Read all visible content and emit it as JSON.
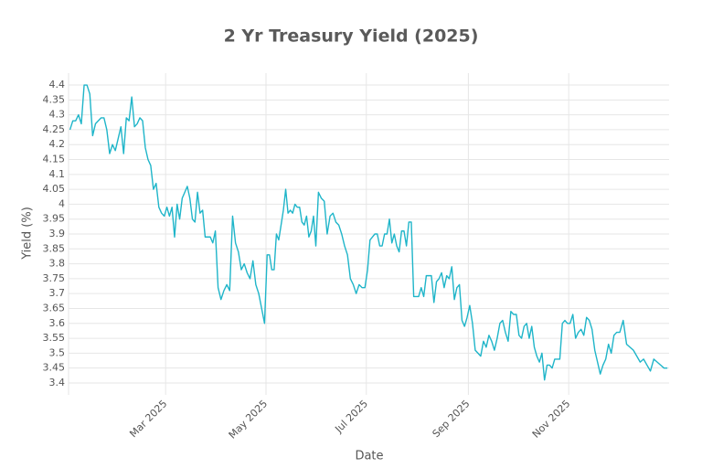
{
  "chart_data": {
    "type": "line",
    "title": "2 Yr Treasury Yield (2025)",
    "x_label": "Date",
    "y_label": "Yield (%)",
    "color": "#1fb5c9",
    "grid": true,
    "ylim": [
      3.36,
      4.44
    ],
    "yticks": [
      3.4,
      3.45,
      3.5,
      3.55,
      3.6,
      3.65,
      3.7,
      3.75,
      3.8,
      3.85,
      3.9,
      3.95,
      4,
      4.05,
      4.1,
      4.15,
      4.2,
      4.25,
      4.3,
      4.35,
      4.4
    ],
    "xticks": [
      {
        "value": "2025-03",
        "label": "Mar 2025"
      },
      {
        "value": "2025-05",
        "label": "May 2025"
      },
      {
        "value": "2025-07",
        "label": "Jul 2025"
      },
      {
        "value": "2025-09",
        "label": "Sep 2025"
      },
      {
        "value": "2025-11",
        "label": "Nov 2025"
      }
    ],
    "x": [
      "2025-01",
      "2025-01",
      "2025-01",
      "2025-01",
      "2025-01",
      "2025-01",
      "2025-01",
      "2025-01",
      "2025-01",
      "2025-01",
      "2025-01",
      "2025-01",
      "2025-01",
      "2025-01",
      "2025-01",
      "2025-01",
      "2025-01",
      "2025-01",
      "2025-02",
      "2025-02",
      "2025-02",
      "2025-02",
      "2025-02",
      "2025-02",
      "2025-02",
      "2025-02",
      "2025-02",
      "2025-02",
      "2025-02",
      "2025-02",
      "2025-02",
      "2025-02",
      "2025-02",
      "2025-02",
      "2025-02",
      "2025-03",
      "2025-03",
      "2025-03",
      "2025-03",
      "2025-03",
      "2025-03",
      "2025-03",
      "2025-03",
      "2025-03",
      "2025-03",
      "2025-03",
      "2025-03",
      "2025-03",
      "2025-03",
      "2025-03",
      "2025-03",
      "2025-03",
      "2025-03",
      "2025-03",
      "2025-03",
      "2025-04",
      "2025-04",
      "2025-04",
      "2025-04",
      "2025-04",
      "2025-04",
      "2025-04",
      "2025-04",
      "2025-04",
      "2025-04",
      "2025-04",
      "2025-04",
      "2025-04",
      "2025-04",
      "2025-04",
      "2025-04",
      "2025-04",
      "2025-05",
      "2025-05",
      "2025-05",
      "2025-05",
      "2025-05",
      "2025-05",
      "2025-05",
      "2025-05",
      "2025-05",
      "2025-05",
      "2025-05",
      "2025-05",
      "2025-05",
      "2025-05",
      "2025-05",
      "2025-05",
      "2025-05",
      "2025-05",
      "2025-05",
      "2025-05",
      "2025-05",
      "2025-05",
      "2025-06",
      "2025-06",
      "2025-06",
      "2025-06",
      "2025-06",
      "2025-06",
      "2025-06",
      "2025-06",
      "2025-06",
      "2025-06",
      "2025-06",
      "2025-06",
      "2025-06",
      "2025-06",
      "2025-06",
      "2025-06",
      "2025-06",
      "2025-07",
      "2025-07",
      "2025-07",
      "2025-07",
      "2025-07",
      "2025-07",
      "2025-07",
      "2025-07",
      "2025-07",
      "2025-07",
      "2025-07",
      "2025-07",
      "2025-07",
      "2025-07",
      "2025-07",
      "2025-07",
      "2025-07",
      "2025-07",
      "2025-07",
      "2025-07",
      "2025-07",
      "2025-08",
      "2025-08",
      "2025-08",
      "2025-08",
      "2025-08",
      "2025-08",
      "2025-08",
      "2025-08",
      "2025-08",
      "2025-08",
      "2025-08",
      "2025-08",
      "2025-08",
      "2025-08",
      "2025-08",
      "2025-08",
      "2025-08",
      "2025-08",
      "2025-08",
      "2025-08",
      "2025-09",
      "2025-09",
      "2025-09",
      "2025-09",
      "2025-09",
      "2025-09",
      "2025-09",
      "2025-09",
      "2025-09",
      "2025-09",
      "2025-09",
      "2025-09",
      "2025-09",
      "2025-09",
      "2025-09",
      "2025-09",
      "2025-09",
      "2025-09",
      "2025-10",
      "2025-10",
      "2025-10",
      "2025-10",
      "2025-10",
      "2025-10",
      "2025-10",
      "2025-10",
      "2025-10",
      "2025-10",
      "2025-10",
      "2025-10",
      "2025-10",
      "2025-10",
      "2025-10",
      "2025-10",
      "2025-10",
      "2025-10",
      "2025-10",
      "2025-10",
      "2025-11",
      "2025-11",
      "2025-11",
      "2025-11",
      "2025-11",
      "2025-11",
      "2025-11",
      "2025-11",
      "2025-11",
      "2025-11",
      "2025-11",
      "2025-11",
      "2025-11",
      "2025-11",
      "2025-11",
      "2025-11",
      "2025-11",
      "2025-11",
      "2025-12",
      "2025-12",
      "2025-12",
      "2025-12",
      "2025-12",
      "2025-12",
      "2025-12",
      "2025-12",
      "2025-12",
      "2025-12",
      "2025-12",
      "2025-12",
      "2025-12",
      "2025-12",
      "2025-12"
    ],
    "values": [
      4.25,
      4.28,
      4.28,
      4.3,
      4.27,
      4.4,
      4.4,
      4.37,
      4.23,
      4.27,
      4.28,
      4.29,
      4.29,
      4.25,
      4.17,
      4.2,
      4.18,
      4.22,
      4.26,
      4.17,
      4.29,
      4.28,
      4.36,
      4.26,
      4.27,
      4.29,
      4.28,
      4.19,
      4.15,
      4.13,
      4.05,
      4.07,
      3.99,
      3.97,
      3.96,
      3.99,
      3.96,
      3.99,
      3.89,
      4.0,
      3.95,
      4.02,
      4.04,
      4.06,
      4.02,
      3.95,
      3.94,
      4.04,
      3.97,
      3.98,
      3.89,
      3.89,
      3.89,
      3.87,
      3.91,
      3.72,
      3.68,
      3.71,
      3.73,
      3.71,
      3.96,
      3.87,
      3.84,
      3.78,
      3.8,
      3.77,
      3.75,
      3.81,
      3.73,
      3.7,
      3.65,
      3.6,
      3.83,
      3.83,
      3.78,
      3.78,
      3.9,
      3.88,
      3.93,
      3.98,
      4.05,
      3.97,
      3.98,
      3.97,
      4.0,
      3.99,
      3.99,
      3.94,
      3.93,
      3.96,
      3.89,
      3.91,
      3.96,
      3.86,
      4.04,
      4.02,
      4.01,
      3.9,
      3.96,
      3.97,
      3.94,
      3.93,
      3.9,
      3.86,
      3.83,
      3.75,
      3.73,
      3.7,
      3.73,
      3.72,
      3.72,
      3.78,
      3.88,
      3.89,
      3.9,
      3.9,
      3.86,
      3.86,
      3.9,
      3.9,
      3.95,
      3.87,
      3.9,
      3.86,
      3.84,
      3.91,
      3.91,
      3.86,
      3.94,
      3.94,
      3.69,
      3.69,
      3.69,
      3.72,
      3.69,
      3.76,
      3.76,
      3.76,
      3.67,
      3.74,
      3.75,
      3.77,
      3.72,
      3.76,
      3.75,
      3.79,
      3.68,
      3.72,
      3.73,
      3.61,
      3.59,
      3.62,
      3.66,
      3.6,
      3.51,
      3.5,
      3.49,
      3.54,
      3.52,
      3.56,
      3.54,
      3.51,
      3.55,
      3.6,
      3.61,
      3.57,
      3.54,
      3.64,
      3.63,
      3.63,
      3.56,
      3.55,
      3.59,
      3.6,
      3.55,
      3.59,
      3.52,
      3.49,
      3.47,
      3.5,
      3.41,
      3.46,
      3.46,
      3.45,
      3.48,
      3.48,
      3.48,
      3.6,
      3.61,
      3.6,
      3.6,
      3.63,
      3.55,
      3.57,
      3.58,
      3.56,
      3.62,
      3.61,
      3.58,
      3.51,
      3.47,
      3.43,
      3.46,
      3.48,
      3.53,
      3.5,
      3.56,
      3.57,
      3.57,
      3.61,
      3.53,
      3.52,
      3.51,
      3.49,
      3.47,
      3.48,
      3.46,
      3.44,
      3.48,
      3.47,
      3.46,
      3.45,
      3.45
    ]
  }
}
